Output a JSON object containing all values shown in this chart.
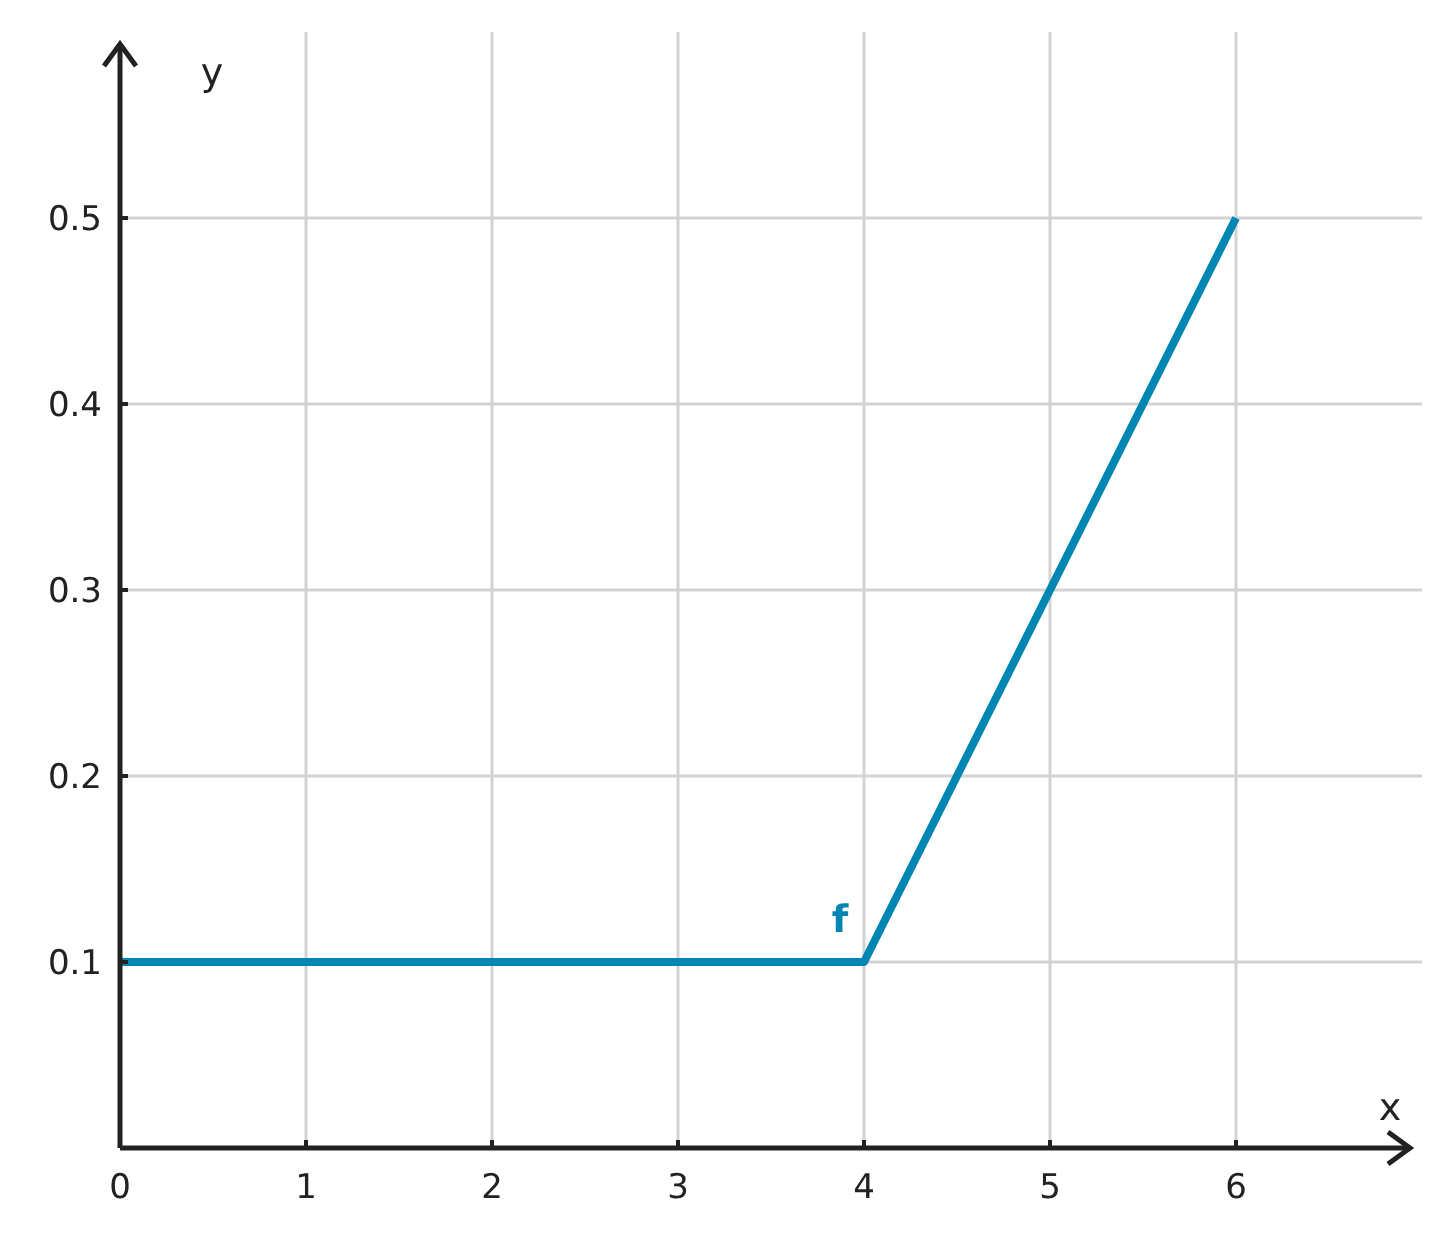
{
  "chart_data": {
    "type": "line",
    "xlabel": "x",
    "ylabel": "y",
    "x": [
      0,
      4,
      6
    ],
    "series": [
      {
        "name": "f",
        "color": "#0086b3",
        "values": [
          0.1,
          0.1,
          0.5
        ]
      }
    ],
    "xlim": [
      0,
      7
    ],
    "ylim": [
      0,
      0.6
    ],
    "xticks": [
      0,
      1,
      2,
      3,
      4,
      5,
      6
    ],
    "yticks": [
      0.1,
      0.2,
      0.3,
      0.4,
      0.5
    ],
    "grid": true,
    "line_style": "solid"
  }
}
